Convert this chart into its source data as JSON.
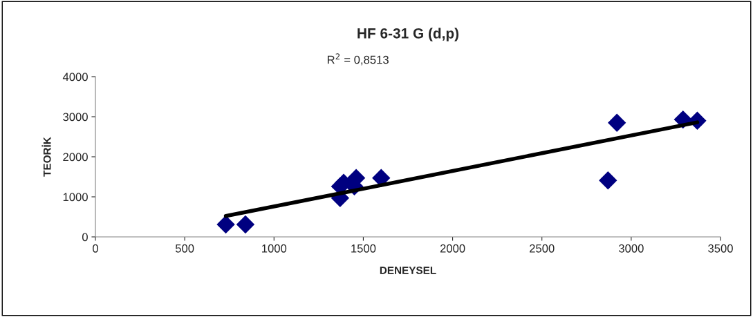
{
  "chart_data": {
    "type": "scatter",
    "title": "HF 6-31 G (d,p)",
    "xlabel": "DENEYSEL",
    "ylabel": "TEORİK",
    "annotations": [
      "R$^{2}$ = 0,8513"
    ],
    "series": [
      {
        "color": "#000080",
        "marker": "diamond",
        "x": [
          730,
          840,
          1370,
          1390,
          1370,
          1460,
          1450,
          1600,
          2920,
          2870,
          3290,
          3370
        ],
        "values": [
          310,
          310,
          1260,
          1350,
          970,
          1470,
          1260,
          1470,
          2850,
          1410,
          2930,
          2900
        ]
      },
      {
        "type": "line",
        "color": "#000000",
        "marker": "none",
        "x": [
          730,
          3370
        ],
        "values": [
          520,
          2860
        ]
      }
    ],
    "xlim": [
      0,
      3500
    ],
    "xticks": [
      0,
      500,
      1000,
      1500,
      2000,
      2500,
      3000,
      3500
    ],
    "ylim": [
      0,
      4000
    ],
    "yticks": [
      0,
      1000,
      2000,
      3000,
      4000
    ],
    "grid": false,
    "legend": false
  }
}
